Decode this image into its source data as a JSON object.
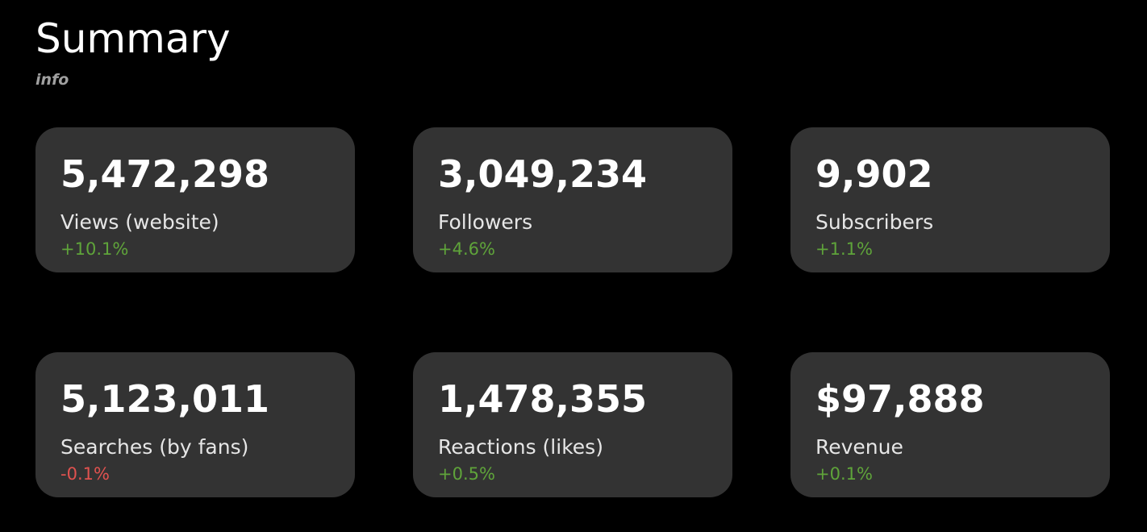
{
  "header": {
    "title": "Summary",
    "subtitle": "info"
  },
  "cards": [
    {
      "value": "5,472,298",
      "label": "Views (website)",
      "change": "+10.1%",
      "change_color": "#5fa43a"
    },
    {
      "value": "3,049,234",
      "label": "Followers",
      "change": "+4.6%",
      "change_color": "#5fa43a"
    },
    {
      "value": "9,902",
      "label": "Subscribers",
      "change": "+1.1%",
      "change_color": "#5fa43a"
    },
    {
      "value": "5,123,011",
      "label": "Searches (by fans)",
      "change": "-0.1%",
      "change_color": "#e0524f"
    },
    {
      "value": "1,478,355",
      "label": "Reactions (likes)",
      "change": "+0.5%",
      "change_color": "#5fa43a"
    },
    {
      "value": "$97,888",
      "label": "Revenue",
      "change": "+0.1%",
      "change_color": "#5fa43a"
    }
  ]
}
